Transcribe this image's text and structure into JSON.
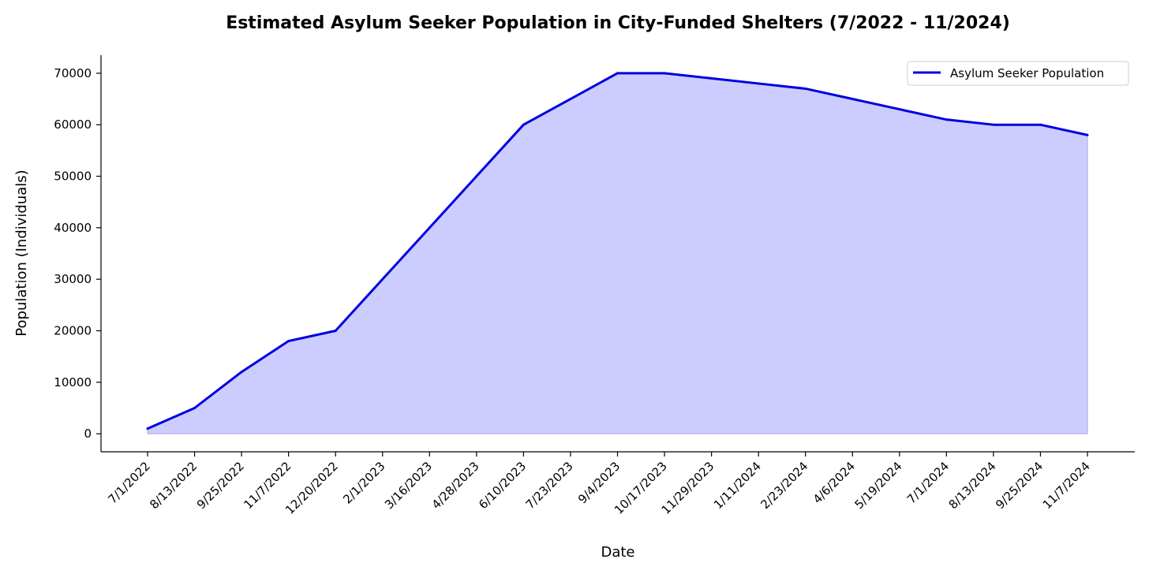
{
  "chart_data": {
    "type": "area",
    "title": "Estimated Asylum Seeker Population in City-Funded Shelters (7/2022 - 11/2024)",
    "xlabel": "Date",
    "ylabel": "Population (Individuals)",
    "ylim": [
      -3500,
      73500
    ],
    "yticks": [
      0,
      10000,
      20000,
      30000,
      40000,
      50000,
      60000,
      70000
    ],
    "ytick_labels": [
      "0",
      "10000",
      "20000",
      "30000",
      "40000",
      "50000",
      "60000",
      "70000"
    ],
    "categories": [
      "7/1/2022",
      "8/13/2022",
      "9/25/2022",
      "11/7/2022",
      "12/20/2022",
      "2/1/2023",
      "3/16/2023",
      "4/28/2023",
      "6/10/2023",
      "7/23/2023",
      "9/4/2023",
      "10/17/2023",
      "11/29/2023",
      "1/11/2024",
      "2/23/2024",
      "4/6/2024",
      "5/19/2024",
      "7/1/2024",
      "8/13/2024",
      "9/25/2024",
      "11/7/2024"
    ],
    "series": [
      {
        "name": "Asylum Seeker Population",
        "values": [
          1000,
          5000,
          12000,
          18000,
          20000,
          30000,
          40000,
          50000,
          60000,
          65000,
          70000,
          70000,
          69000,
          68000,
          67000,
          65000,
          63000,
          61000,
          60000,
          60000,
          58000
        ],
        "color": "#0000e0",
        "fill": "#ccccff"
      }
    ],
    "legend": {
      "position": "top-right",
      "label": "Asylum Seeker Population"
    }
  }
}
